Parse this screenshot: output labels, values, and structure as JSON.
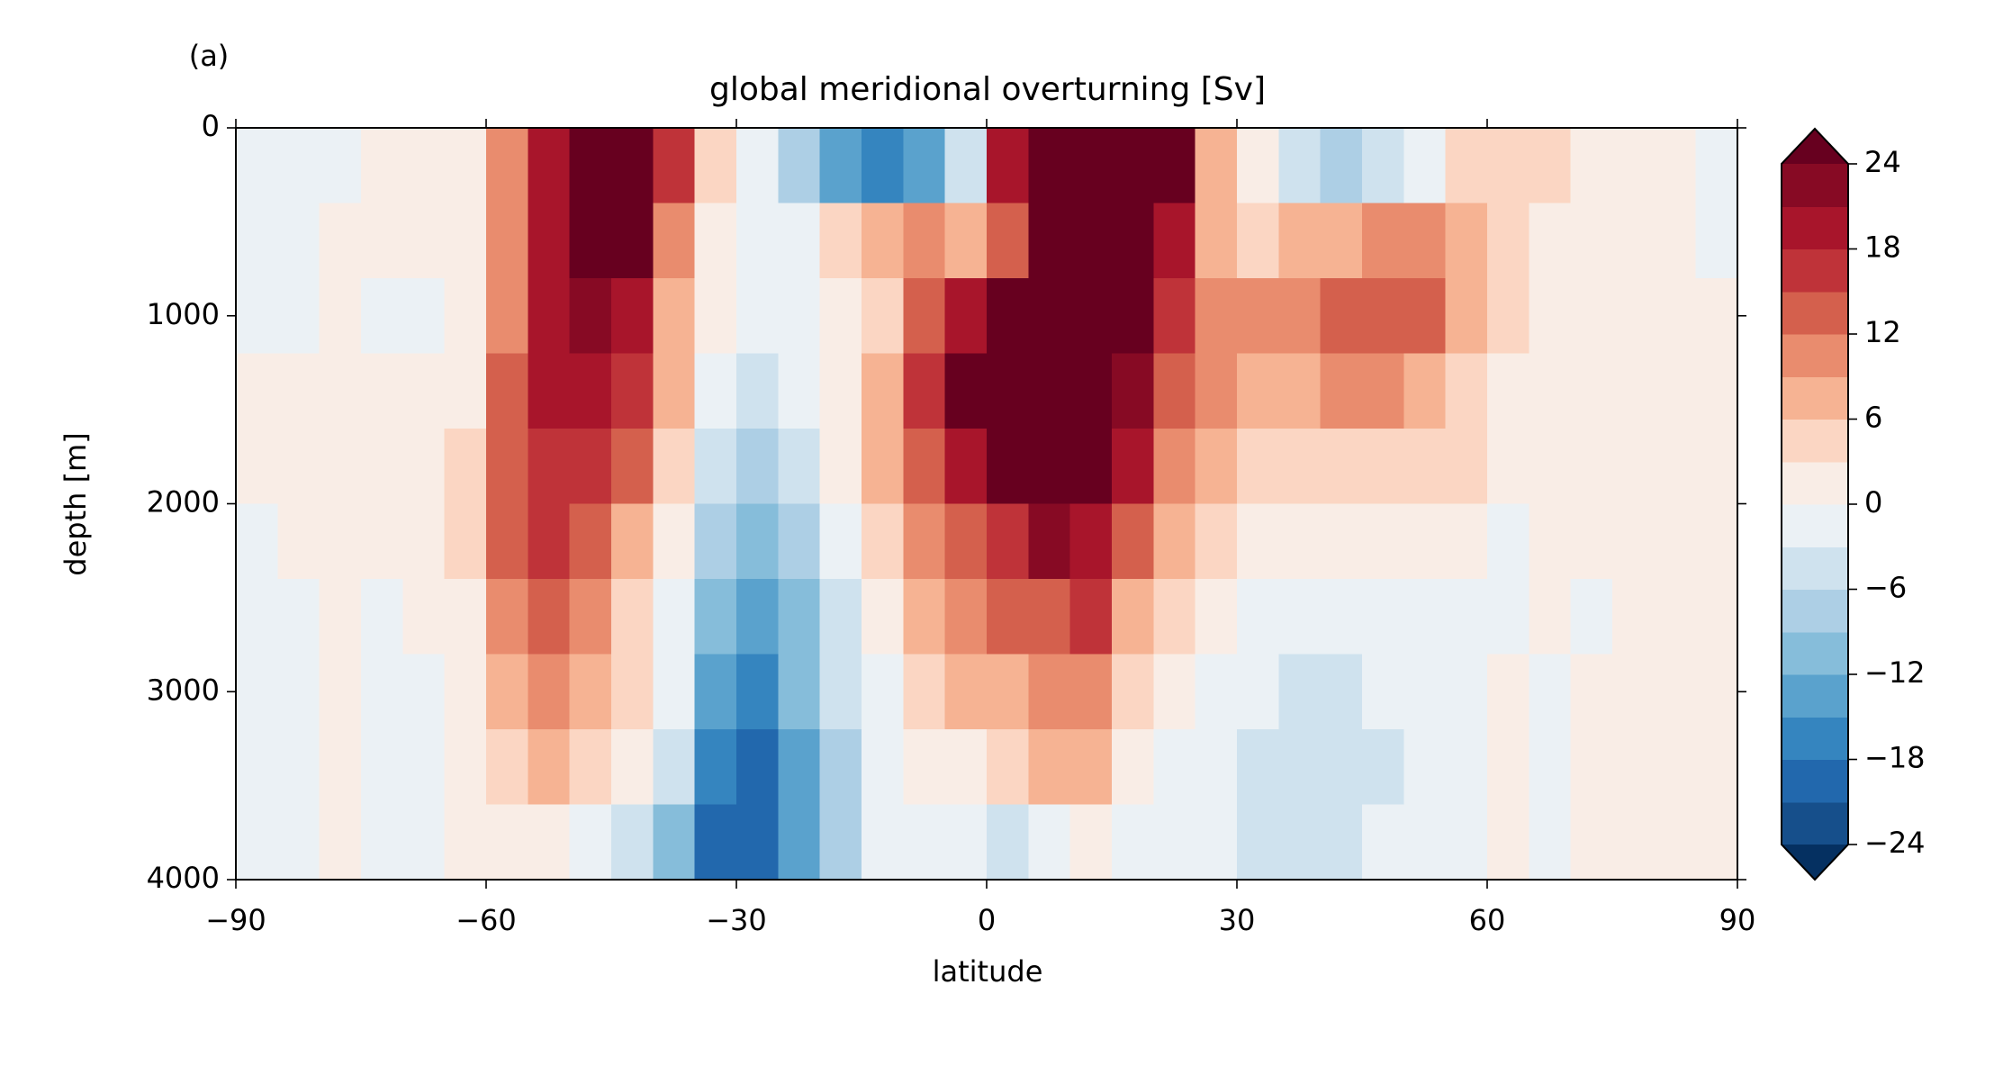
{
  "chart_data": {
    "type": "heatmap",
    "panel_label": "(a)",
    "title": "global meridional overturning [Sv]",
    "xlabel": "latitude",
    "ylabel": "depth [m]",
    "xlim": [
      -90,
      90
    ],
    "ylim": [
      0,
      4000
    ],
    "xticks": [
      {
        "value": -90,
        "label": "−90"
      },
      {
        "value": -60,
        "label": "−60"
      },
      {
        "value": -30,
        "label": "−30"
      },
      0,
      30,
      60,
      90
    ],
    "yticks": [
      0,
      1000,
      2000,
      3000,
      4000
    ],
    "x": [
      -87.5,
      -82.5,
      -77.5,
      -72.5,
      -67.5,
      -62.5,
      -57.5,
      -52.5,
      -47.5,
      -42.5,
      -37.5,
      -32.5,
      -27.5,
      -22.5,
      -17.5,
      -12.5,
      -7.5,
      -2.5,
      2.5,
      7.5,
      12.5,
      17.5,
      22.5,
      27.5,
      32.5,
      37.5,
      42.5,
      47.5,
      52.5,
      57.5,
      62.5,
      67.5,
      72.5,
      77.5,
      82.5,
      87.5
    ],
    "y": [
      200,
      600,
      1000,
      1400,
      1800,
      2200,
      2600,
      3000,
      3400,
      3800
    ],
    "z": [
      [
        -0.5,
        -0.5,
        -0.5,
        0.5,
        0.5,
        2,
        9,
        20,
        26,
        26,
        15,
        4,
        -2,
        -7,
        -13,
        -18,
        -14,
        -4,
        20,
        26,
        26,
        26,
        24,
        8,
        1,
        -5,
        -7,
        -5,
        -2,
        3,
        4,
        3,
        2,
        1,
        0.5,
        -0.5
      ],
      [
        -0.5,
        -0.5,
        0.5,
        0.5,
        0.5,
        2,
        9,
        20,
        26,
        24,
        10,
        2,
        -2,
        -1,
        3,
        6,
        9,
        6,
        14,
        26,
        26,
        26,
        18,
        8,
        5,
        6,
        7,
        9,
        9,
        7,
        3,
        2,
        1,
        1,
        0.5,
        -0.5
      ],
      [
        -0.5,
        -0.5,
        0.5,
        -1,
        -1,
        2,
        9,
        18,
        22,
        20,
        7,
        0.5,
        -2,
        -1,
        2,
        5,
        12,
        20,
        26,
        26,
        26,
        26,
        17,
        11,
        10,
        11,
        12,
        13,
        12,
        8,
        3,
        2,
        1,
        1,
        0.5,
        0.5
      ],
      [
        0.5,
        0.5,
        1,
        0.5,
        0.5,
        2,
        12,
        18,
        19,
        17,
        6,
        -2,
        -5,
        -3,
        1,
        6,
        16,
        26,
        26,
        26,
        26,
        22,
        14,
        9,
        7,
        8,
        9,
        10,
        8,
        5,
        2,
        1,
        1,
        1,
        0.5,
        0.5
      ],
      [
        0.5,
        0.5,
        1,
        0.5,
        0.5,
        3,
        14,
        16,
        16,
        12,
        3,
        -5,
        -8,
        -5,
        0.5,
        6,
        12,
        18,
        24,
        26,
        24,
        18,
        11,
        6,
        4,
        4,
        5,
        5,
        4,
        3,
        1.5,
        1,
        1,
        0.5,
        0.5,
        0.5
      ],
      [
        -0.5,
        0.5,
        1,
        0.5,
        0.5,
        3,
        13,
        15,
        13,
        8,
        0.5,
        -8,
        -11,
        -8,
        -2,
        4,
        9,
        14,
        17,
        21,
        19,
        12,
        6,
        3,
        2,
        1,
        1,
        1,
        0.5,
        0.5,
        -0.5,
        0.5,
        0.5,
        0.5,
        0.5,
        0.5
      ],
      [
        -0.5,
        -0.5,
        0.5,
        -0.5,
        0.5,
        2,
        11,
        12,
        10,
        5,
        -2,
        -10,
        -13,
        -10,
        -4,
        1,
        7,
        11,
        12,
        14,
        16,
        8,
        3,
        0.5,
        -1,
        -3,
        -3,
        -2,
        -1,
        -0.5,
        -0.5,
        0.5,
        -0.5,
        0.5,
        0.5,
        0.5
      ],
      [
        -0.5,
        -0.5,
        0.5,
        -0.5,
        -0.5,
        1,
        8,
        10,
        7,
        3,
        -3,
        -13,
        -16,
        -12,
        -6,
        -1,
        4,
        7,
        8,
        10,
        11,
        5,
        1,
        -1,
        -3,
        -4,
        -5,
        -3,
        -2,
        -1,
        0.5,
        -0.5,
        0.5,
        0.5,
        0.5,
        0.5
      ],
      [
        -0.5,
        -0.5,
        0.5,
        -0.5,
        -0.5,
        0.5,
        5,
        7,
        4,
        1,
        -6,
        -18,
        -20,
        -14,
        -7,
        -2,
        1,
        2,
        3,
        6,
        8,
        2,
        -1,
        -2,
        -5,
        -6,
        -6,
        -4,
        -2,
        -1,
        0.5,
        -0.5,
        0.5,
        0.5,
        0.5,
        0.5
      ],
      [
        -0.5,
        -0.5,
        1,
        -0.5,
        -0.5,
        0.5,
        2,
        2,
        -1,
        -4,
        -10,
        -21,
        -20,
        -13,
        -7,
        -2,
        -2,
        -3,
        -4,
        -3,
        1,
        -1,
        -2,
        -3,
        -5,
        -6,
        -6,
        -3,
        -1,
        -0.5,
        0.5,
        -0.5,
        0.5,
        0.5,
        0.5,
        0.5
      ]
    ],
    "levels": [
      -24,
      -21,
      -18,
      -15,
      -12,
      -9,
      -6,
      -3,
      0,
      3,
      6,
      9,
      12,
      15,
      18,
      21,
      24
    ],
    "colors": [
      "#164f8b",
      "#2268ad",
      "#3585bf",
      "#5aa2cd",
      "#86bdda",
      "#adcfe5",
      "#cfe2ee",
      "#ebf1f5",
      "#f9ede6",
      "#fbd6c3",
      "#f6b393",
      "#e98c6e",
      "#d4604d",
      "#bf3339",
      "#a8152b",
      "#870a24"
    ],
    "under_color": "#053061",
    "over_color": "#67001f",
    "colorbar_ticks": [
      {
        "value": -24,
        "label": "−24"
      },
      {
        "value": -18,
        "label": "−18"
      },
      {
        "value": -12,
        "label": "−12"
      },
      {
        "value": -6,
        "label": "−6"
      },
      0,
      6,
      12,
      18,
      24
    ]
  }
}
